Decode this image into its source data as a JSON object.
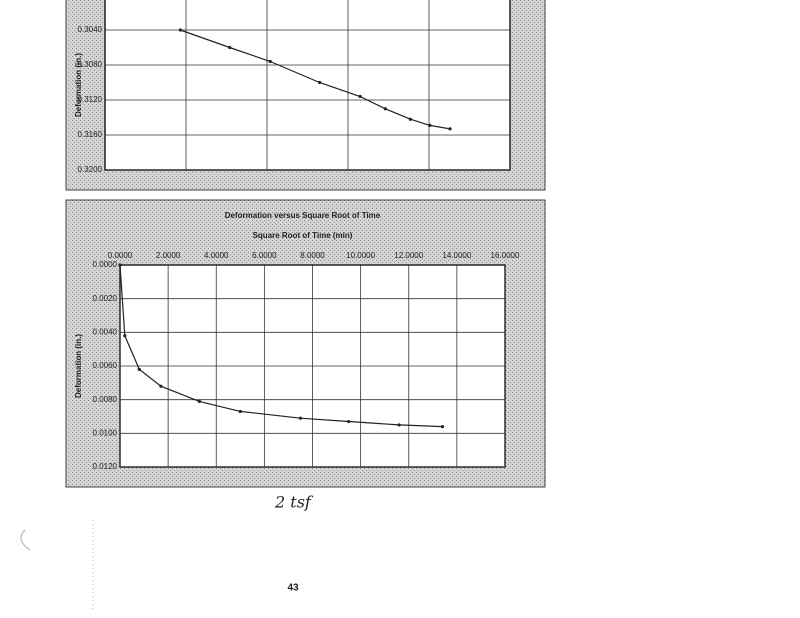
{
  "chart_data": [
    {
      "type": "line",
      "y_label": "Deformation (in.)",
      "y_inverted": true,
      "x": [
        0.93,
        1.54,
        2.04,
        2.65,
        3.15,
        3.46,
        3.77,
        4.01,
        4.26
      ],
      "series": [
        {
          "color": "#222",
          "values": [
            0.304,
            0.306,
            0.3076,
            0.31,
            0.3116,
            0.313,
            0.3142,
            0.3149,
            0.3153
          ]
        }
      ],
      "xlim": [
        0,
        5
      ],
      "ylim": [
        0.3,
        0.32
      ],
      "yticks": [
        {
          "value": 0.304,
          "label": "0.3040"
        },
        {
          "value": 0.308,
          "label": "0.3080"
        },
        {
          "value": 0.312,
          "label": "0.3120"
        },
        {
          "value": 0.316,
          "label": "0.3160"
        },
        {
          "value": 0.32,
          "label": "0.3200"
        }
      ],
      "grid": true
    },
    {
      "type": "line",
      "title": "Deformation versus Square Root of Time",
      "x_label": "Square Root of Time (min)",
      "y_label": "Deformation (in.)",
      "y_inverted": true,
      "x_axis_position": "top",
      "x": [
        0,
        0.2,
        0.8,
        1.7,
        3.3,
        5,
        7.5,
        9.5,
        11.6,
        13.4
      ],
      "series": [
        {
          "color": "#222",
          "values": [
            0,
            0.0042,
            0.0062,
            0.0072,
            0.0081,
            0.0087,
            0.0091,
            0.0093,
            0.0095,
            0.0096
          ]
        }
      ],
      "xlim": [
        0,
        16
      ],
      "ylim": [
        0,
        0.012
      ],
      "xticks": [
        {
          "value": 0,
          "label": "0.0000"
        },
        {
          "value": 2,
          "label": "2.0000"
        },
        {
          "value": 4,
          "label": "4.0000"
        },
        {
          "value": 6,
          "label": "6.0000"
        },
        {
          "value": 8,
          "label": "8.0000"
        },
        {
          "value": 10,
          "label": "10.0000"
        },
        {
          "value": 12,
          "label": "12.0000"
        },
        {
          "value": 14,
          "label": "14.0000"
        },
        {
          "value": 16,
          "label": "16.0000"
        }
      ],
      "yticks": [
        {
          "value": 0,
          "label": "0.0000"
        },
        {
          "value": 0.002,
          "label": "0.0020"
        },
        {
          "value": 0.004,
          "label": "0.0040"
        },
        {
          "value": 0.006,
          "label": "0.0060"
        },
        {
          "value": 0.008,
          "label": "0.0080"
        },
        {
          "value": 0.01,
          "label": "0.0100"
        },
        {
          "value": 0.012,
          "label": "0.0120"
        }
      ],
      "grid": true
    }
  ],
  "annotations": {
    "handwriting": "2 tsf",
    "page_number": "43"
  }
}
